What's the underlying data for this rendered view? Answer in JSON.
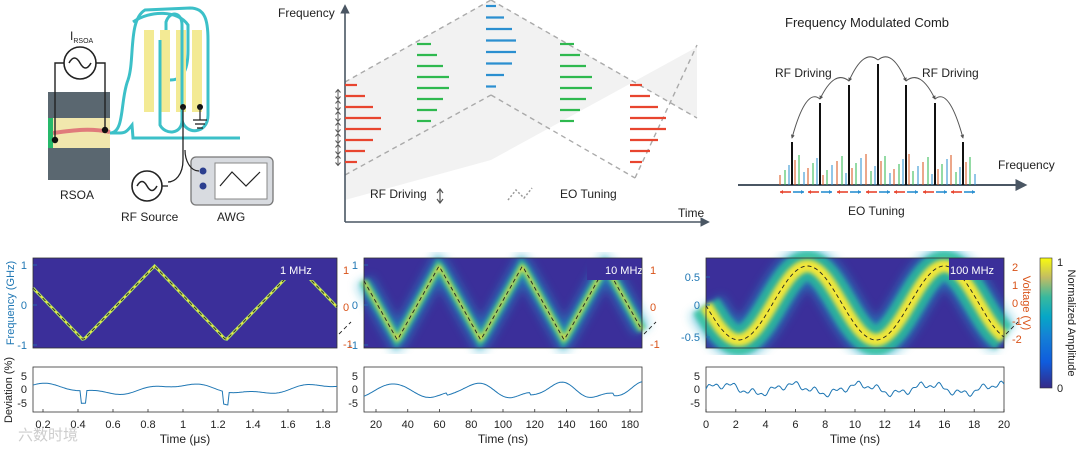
{
  "setup": {
    "i_rsoa": "I",
    "i_rsoa_sub": "RSOA",
    "rsoa_label": "RSOA",
    "rf_source_label": "RF Source",
    "awg_label": "AWG"
  },
  "tf_diagram": {
    "ylabel": "Frequency",
    "xlabel": "Time",
    "legend_rf": "RF Driving",
    "legend_eo": "EO Tuning"
  },
  "comb": {
    "title": "Frequency Modulated Comb",
    "rf_left": "RF Driving",
    "rf_right": "RF Driving",
    "axis_label": "Frequency",
    "eo_label": "EO Tuning"
  },
  "panels": [
    {
      "tag": "1 MHz",
      "ylabel_left": "Frequency (GHz)",
      "left_ticks": [
        "1",
        "0",
        "-1"
      ],
      "right_ticks": [
        "1",
        "0",
        "-1"
      ],
      "x_ticks": [
        "0.2",
        "0.4",
        "0.6",
        "0.8",
        "1",
        "1.2",
        "1.4",
        "1.6",
        "1.8"
      ],
      "xlabel": "Time (μs)",
      "dev_ylabel": "Deviation (%)",
      "dev_ticks": [
        "5",
        "0",
        "-5"
      ]
    },
    {
      "tag": "10 MHz",
      "left_ticks": [
        "1",
        "0",
        "-1"
      ],
      "right_ticks": [
        "1",
        "0",
        "-1"
      ],
      "x_ticks": [
        "20",
        "40",
        "60",
        "80",
        "100",
        "120",
        "140",
        "160",
        "180"
      ],
      "xlabel": "Time (ns)",
      "dev_ticks": [
        "5",
        "0",
        "-5"
      ]
    },
    {
      "tag": "100 MHz",
      "left_ticks": [
        "0.5",
        "0",
        "-0.5"
      ],
      "ylabel_right": "Voltage (V)",
      "right_ticks": [
        "2",
        "1",
        "0",
        "-1",
        "-2"
      ],
      "x_ticks": [
        "0",
        "2",
        "4",
        "6",
        "8",
        "10",
        "12",
        "14",
        "16",
        "18",
        "20"
      ],
      "xlabel": "Time (ns)",
      "dev_ticks": [
        "5",
        "0",
        "-5"
      ]
    }
  ],
  "colorbar": {
    "label": "Normalized Amplitude",
    "top": "1",
    "bottom": "0"
  },
  "colors": {
    "red": "#e8452f",
    "green": "#2fb94f",
    "blue": "#2b8fd0",
    "teal": "#3cc0c8",
    "axis_line": "#4a5663",
    "heat_bg": "#3b2f9a",
    "dev_line": "#1f77b4",
    "left_axis": "#1f77b4",
    "right_axis": "#d95319"
  },
  "watermark": "六数时境"
}
